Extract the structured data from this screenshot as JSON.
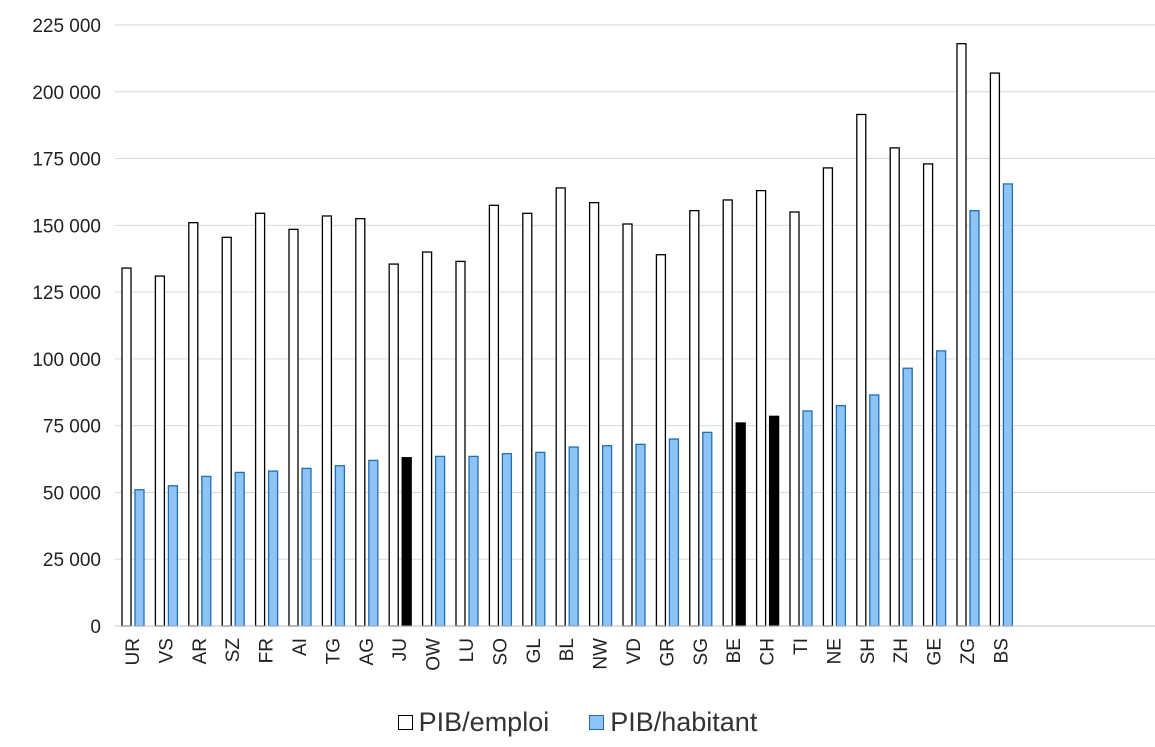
{
  "chart_data": {
    "type": "bar",
    "categories": [
      "UR",
      "VS",
      "AR",
      "SZ",
      "FR",
      "AI",
      "TG",
      "AG",
      "JU",
      "OW",
      "LU",
      "SO",
      "GL",
      "BL",
      "NW",
      "VD",
      "GR",
      "SG",
      "BE",
      "CH",
      "TI",
      "NE",
      "SH",
      "ZH",
      "GE",
      "ZG",
      "BS"
    ],
    "series": [
      {
        "name": "PIB/emploi",
        "fill": "#ffffff",
        "stroke": "#000000",
        "values": [
          134000,
          131000,
          151000,
          145500,
          154500,
          148500,
          153500,
          152500,
          135500,
          140000,
          136500,
          157500,
          154500,
          164000,
          158500,
          150500,
          139000,
          155500,
          159500,
          163000,
          155000,
          171500,
          191500,
          179000,
          173000,
          218000,
          207000
        ]
      },
      {
        "name": "PIB/habitant",
        "fill": "#8ec3f5",
        "stroke": "#1f6fb5",
        "highlight_fill": "#000000",
        "highlight_categories": [
          "JU",
          "BE",
          "CH"
        ],
        "values": [
          51000,
          52500,
          56000,
          57500,
          58000,
          59000,
          60000,
          62000,
          63000,
          63500,
          63500,
          64500,
          65000,
          67000,
          67500,
          68000,
          70000,
          72500,
          76000,
          78500,
          80500,
          82500,
          86500,
          96500,
          103000,
          155500,
          165500
        ]
      }
    ],
    "ylim": [
      0,
      225000
    ],
    "yticks": [
      0,
      25000,
      50000,
      75000,
      100000,
      125000,
      150000,
      175000,
      200000,
      225000
    ],
    "ytick_labels": [
      "0",
      "25 000",
      "50 000",
      "75 000",
      "100 000",
      "125 000",
      "150 000",
      "175 000",
      "200 000",
      "225 000"
    ],
    "grid": true,
    "legend": "bottom-center",
    "gridline_color": "#d9d9d9"
  }
}
